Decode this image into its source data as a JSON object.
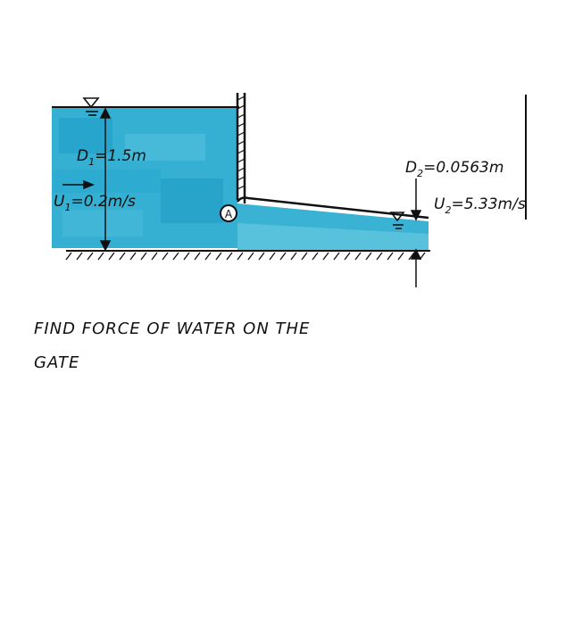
{
  "diagram": {
    "upstream": {
      "depth_label": "D",
      "depth_sub": "1",
      "depth_value": "=1.5m",
      "velocity_label": "U",
      "velocity_sub": "1",
      "velocity_value": "=0.2m/s"
    },
    "downstream": {
      "depth_label": "D",
      "depth_sub": "2",
      "depth_value": "=0.0563m",
      "velocity_label": "U",
      "velocity_sub": "2",
      "velocity_value": "=5.33m/s"
    },
    "gate_hinge_label": "A",
    "colors": {
      "water": "#3fb3d4",
      "water_dark": "#1e9fc8",
      "ink": "#111111"
    }
  },
  "problem": {
    "line1": "FIND FORCE OF WATER ON THE",
    "line2": "GATE"
  }
}
